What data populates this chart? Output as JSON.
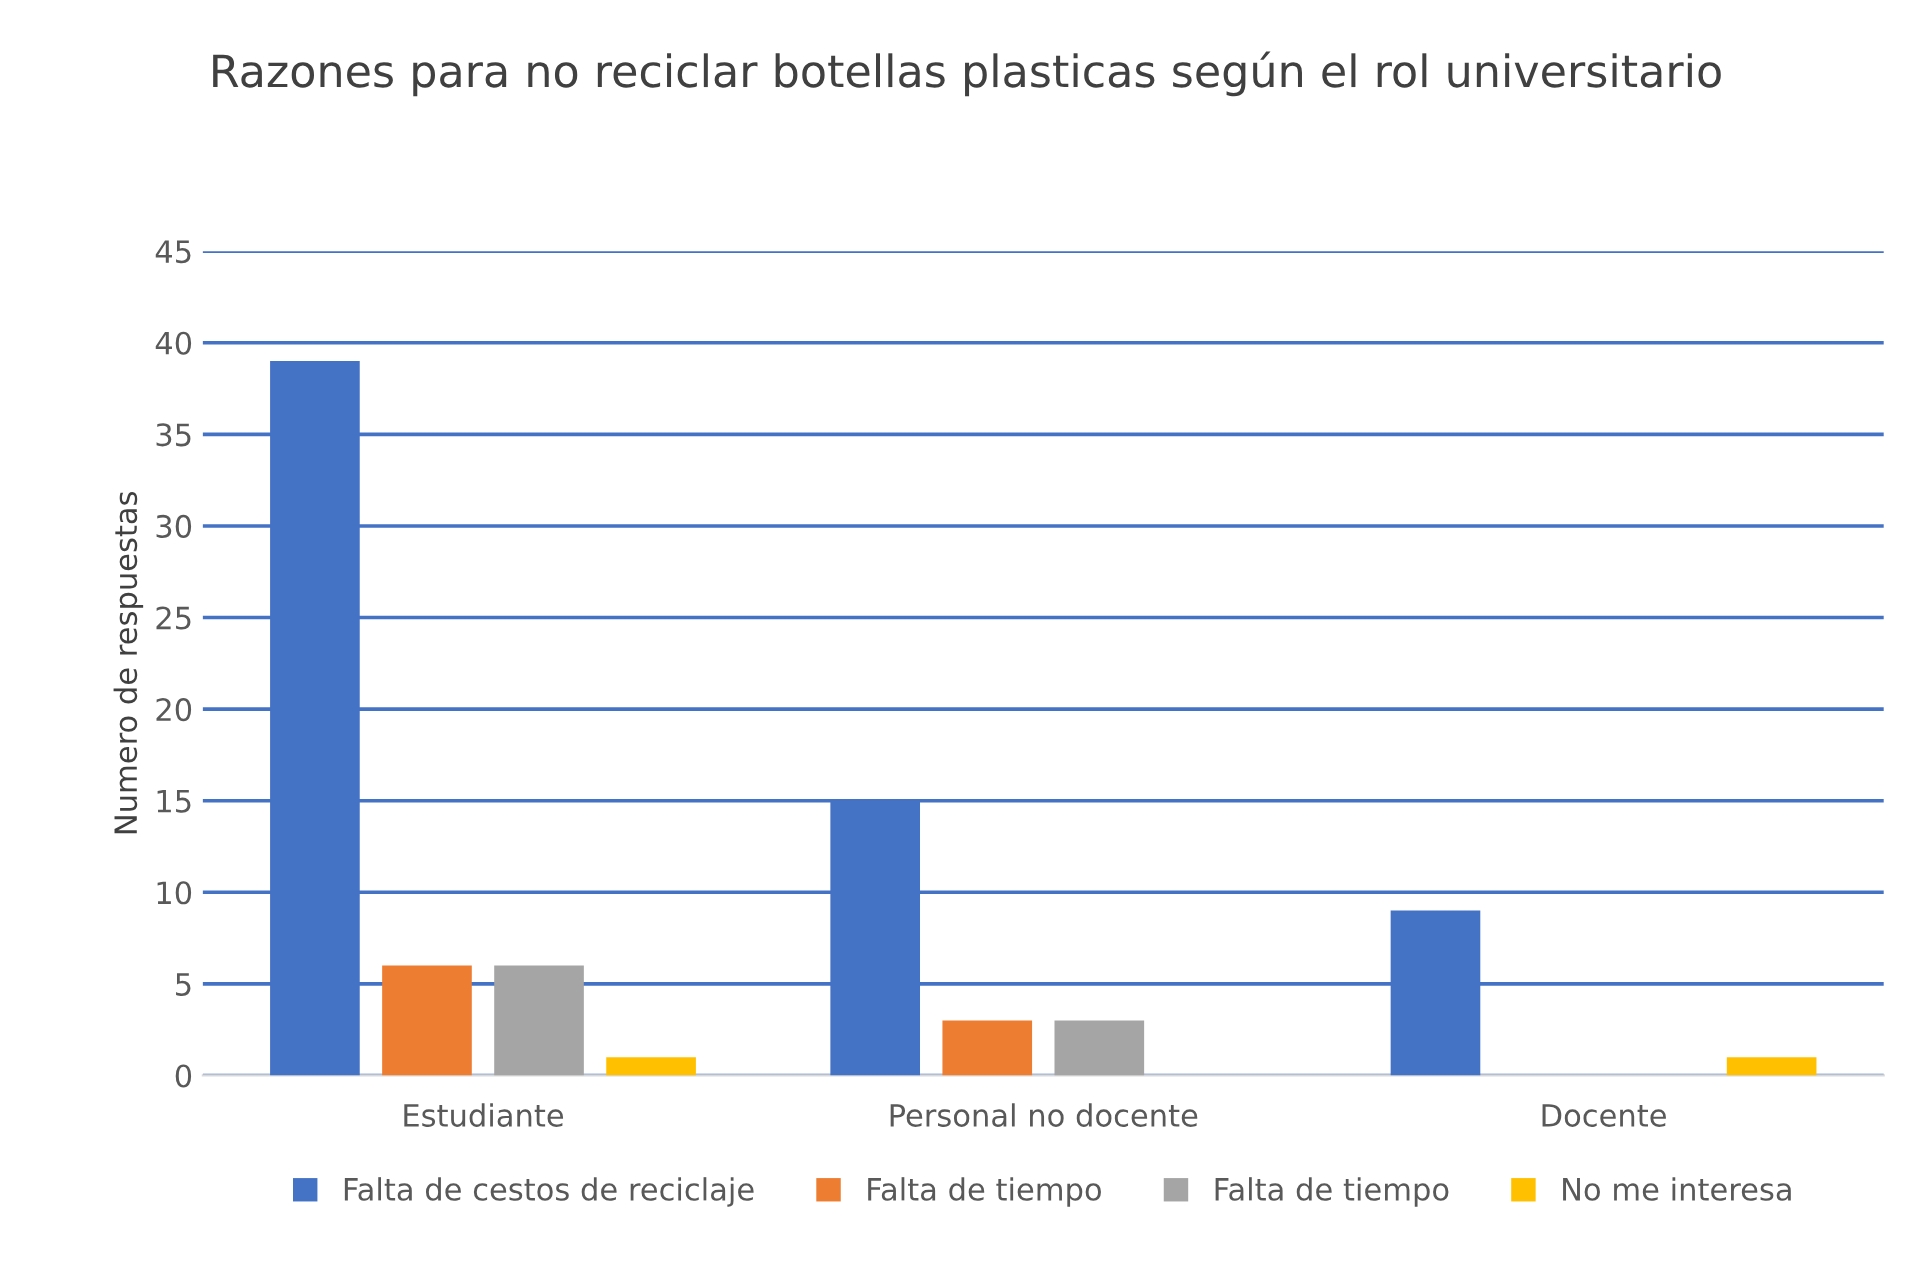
{
  "chart_data": {
    "type": "bar",
    "title": "Razones para no reciclar botellas plasticas según el rol universitario",
    "ylabel": "Numero de respuestas",
    "categories": [
      "Estudiante",
      "Personal no docente",
      "Docente"
    ],
    "series": [
      {
        "name": "Falta de cestos de reciclaje",
        "color": "#4472c4",
        "values": [
          39,
          15,
          9
        ]
      },
      {
        "name": "Falta de tiempo",
        "color": "#ed7d31",
        "values": [
          6,
          3,
          0
        ]
      },
      {
        "name": "Falta de tiempo",
        "color": "#a5a5a5",
        "values": [
          6,
          3,
          0
        ]
      },
      {
        "name": "No me interesa",
        "color": "#ffc000",
        "values": [
          1,
          0,
          1
        ]
      }
    ],
    "ylim": [
      0,
      45
    ],
    "yticks": [
      0,
      5,
      10,
      15,
      20,
      25,
      30,
      35,
      40,
      45
    ],
    "grid": "y",
    "legend": "bottom"
  }
}
